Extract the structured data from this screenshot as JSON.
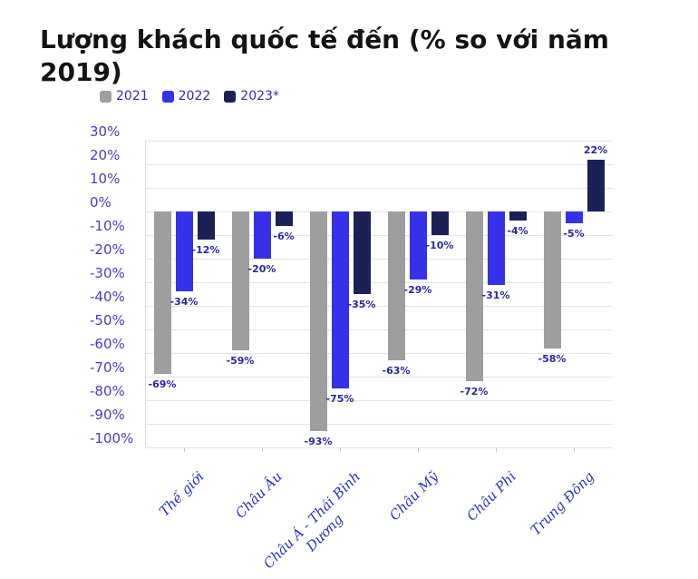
{
  "title": "Lượng khách quốc tế đến (% so với năm 2019)",
  "chart_data": {
    "type": "bar",
    "title": "Lượng khách quốc tế đến (% so với năm 2019)",
    "unit": "%",
    "categories": [
      "Thế giới",
      "Châu Âu",
      "Châu Á - Thái Bình\nDương",
      "Châu Mỹ",
      "Châu Phi",
      "Trung Đông"
    ],
    "series": [
      {
        "name": "2021",
        "color": "#9e9e9e",
        "values": [
          -69,
          -59,
          -93,
          -63,
          -72,
          -58
        ]
      },
      {
        "name": "2022",
        "color": "#3531e8",
        "values": [
          -34,
          -20,
          -75,
          -29,
          -31,
          -5
        ]
      },
      {
        "name": "2023*",
        "color": "#1b2057",
        "values": [
          -12,
          -6,
          -35,
          -10,
          -4,
          22
        ]
      }
    ],
    "y_ticks": [
      30,
      20,
      10,
      0,
      -10,
      -20,
      -30,
      -40,
      -50,
      -60,
      -70,
      -80,
      -90,
      -100
    ],
    "ylim": [
      -100,
      30
    ],
    "grid": true,
    "legend_position": "top-left",
    "colors": {
      "grid_line": "#e4e4e4",
      "axis_line": "#d9d9d9",
      "y_label": "#4a3cc4",
      "x_label": "#2433c0",
      "value_label": "#28289d",
      "legend_text": "#2d2fae",
      "title_text": "#141414"
    }
  }
}
